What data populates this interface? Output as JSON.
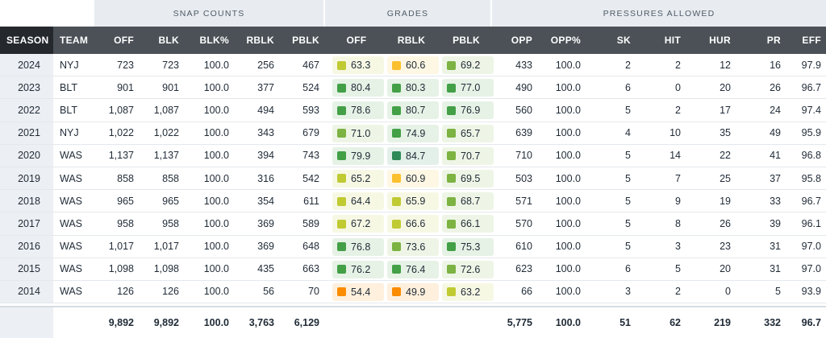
{
  "groups": {
    "snap": "SNAP COUNTS",
    "grades": "GRADES",
    "pressures": "PRESSURES ALLOWED"
  },
  "columns": {
    "season": "SEASON",
    "team": "TEAM",
    "off": "OFF",
    "blk": "BLK",
    "blkpct": "BLK%",
    "rblk": "RBLK",
    "pblk": "PBLK",
    "g_off": "OFF",
    "g_rblk": "RBLK",
    "g_pblk": "PBLK",
    "opp": "OPP",
    "opppct": "OPP%",
    "sk": "SK",
    "hit": "HIT",
    "hur": "HUR",
    "pr": "PR",
    "eff": "EFF"
  },
  "grade_colors": {
    "high": "#2e8b57",
    "good": "#43a047",
    "above": "#7cb342",
    "avg": "#c0ca33",
    "below": "#fbc02d",
    "low": "#fb8c00"
  },
  "rows": [
    {
      "season": "2024",
      "team": "NYJ",
      "off": "723",
      "blk": "723",
      "blkpct": "100.0",
      "rblk": "256",
      "pblk": "467",
      "g_off": "63.3",
      "g_off_c": "avg",
      "g_rblk": "60.6",
      "g_rblk_c": "below",
      "g_pblk": "69.2",
      "g_pblk_c": "above",
      "opp": "433",
      "opppct": "100.0",
      "sk": "2",
      "hit": "2",
      "hur": "12",
      "pr": "16",
      "eff": "97.9"
    },
    {
      "season": "2023",
      "team": "BLT",
      "off": "901",
      "blk": "901",
      "blkpct": "100.0",
      "rblk": "377",
      "pblk": "524",
      "g_off": "80.4",
      "g_off_c": "good",
      "g_rblk": "80.3",
      "g_rblk_c": "good",
      "g_pblk": "77.0",
      "g_pblk_c": "good",
      "opp": "490",
      "opppct": "100.0",
      "sk": "6",
      "hit": "0",
      "hur": "20",
      "pr": "26",
      "eff": "96.7"
    },
    {
      "season": "2022",
      "team": "BLT",
      "off": "1,087",
      "blk": "1,087",
      "blkpct": "100.0",
      "rblk": "494",
      "pblk": "593",
      "g_off": "78.6",
      "g_off_c": "good",
      "g_rblk": "80.7",
      "g_rblk_c": "good",
      "g_pblk": "76.9",
      "g_pblk_c": "good",
      "opp": "560",
      "opppct": "100.0",
      "sk": "5",
      "hit": "2",
      "hur": "17",
      "pr": "24",
      "eff": "97.4"
    },
    {
      "season": "2021",
      "team": "NYJ",
      "off": "1,022",
      "blk": "1,022",
      "blkpct": "100.0",
      "rblk": "343",
      "pblk": "679",
      "g_off": "71.0",
      "g_off_c": "above",
      "g_rblk": "74.9",
      "g_rblk_c": "good",
      "g_pblk": "65.7",
      "g_pblk_c": "above",
      "opp": "639",
      "opppct": "100.0",
      "sk": "4",
      "hit": "10",
      "hur": "35",
      "pr": "49",
      "eff": "95.9"
    },
    {
      "season": "2020",
      "team": "WAS",
      "off": "1,137",
      "blk": "1,137",
      "blkpct": "100.0",
      "rblk": "394",
      "pblk": "743",
      "g_off": "79.9",
      "g_off_c": "good",
      "g_rblk": "84.7",
      "g_rblk_c": "high",
      "g_pblk": "70.7",
      "g_pblk_c": "above",
      "opp": "710",
      "opppct": "100.0",
      "sk": "5",
      "hit": "14",
      "hur": "22",
      "pr": "41",
      "eff": "96.8"
    },
    {
      "season": "2019",
      "team": "WAS",
      "off": "858",
      "blk": "858",
      "blkpct": "100.0",
      "rblk": "316",
      "pblk": "542",
      "g_off": "65.2",
      "g_off_c": "avg",
      "g_rblk": "60.9",
      "g_rblk_c": "below",
      "g_pblk": "69.5",
      "g_pblk_c": "above",
      "opp": "503",
      "opppct": "100.0",
      "sk": "5",
      "hit": "7",
      "hur": "25",
      "pr": "37",
      "eff": "95.8"
    },
    {
      "season": "2018",
      "team": "WAS",
      "off": "965",
      "blk": "965",
      "blkpct": "100.0",
      "rblk": "354",
      "pblk": "611",
      "g_off": "64.4",
      "g_off_c": "avg",
      "g_rblk": "65.9",
      "g_rblk_c": "avg",
      "g_pblk": "68.7",
      "g_pblk_c": "above",
      "opp": "571",
      "opppct": "100.0",
      "sk": "5",
      "hit": "9",
      "hur": "19",
      "pr": "33",
      "eff": "96.7"
    },
    {
      "season": "2017",
      "team": "WAS",
      "off": "958",
      "blk": "958",
      "blkpct": "100.0",
      "rblk": "369",
      "pblk": "589",
      "g_off": "67.2",
      "g_off_c": "avg",
      "g_rblk": "66.6",
      "g_rblk_c": "avg",
      "g_pblk": "66.1",
      "g_pblk_c": "above",
      "opp": "570",
      "opppct": "100.0",
      "sk": "5",
      "hit": "8",
      "hur": "26",
      "pr": "39",
      "eff": "96.1"
    },
    {
      "season": "2016",
      "team": "WAS",
      "off": "1,017",
      "blk": "1,017",
      "blkpct": "100.0",
      "rblk": "369",
      "pblk": "648",
      "g_off": "76.8",
      "g_off_c": "good",
      "g_rblk": "73.6",
      "g_rblk_c": "above",
      "g_pblk": "75.3",
      "g_pblk_c": "good",
      "opp": "610",
      "opppct": "100.0",
      "sk": "5",
      "hit": "3",
      "hur": "23",
      "pr": "31",
      "eff": "97.0"
    },
    {
      "season": "2015",
      "team": "WAS",
      "off": "1,098",
      "blk": "1,098",
      "blkpct": "100.0",
      "rblk": "435",
      "pblk": "663",
      "g_off": "76.2",
      "g_off_c": "good",
      "g_rblk": "76.4",
      "g_rblk_c": "good",
      "g_pblk": "72.6",
      "g_pblk_c": "above",
      "opp": "623",
      "opppct": "100.0",
      "sk": "6",
      "hit": "5",
      "hur": "20",
      "pr": "31",
      "eff": "97.0"
    },
    {
      "season": "2014",
      "team": "WAS",
      "off": "126",
      "blk": "126",
      "blkpct": "100.0",
      "rblk": "56",
      "pblk": "70",
      "g_off": "54.4",
      "g_off_c": "low",
      "g_rblk": "49.9",
      "g_rblk_c": "low",
      "g_pblk": "63.2",
      "g_pblk_c": "avg",
      "opp": "66",
      "opppct": "100.0",
      "sk": "3",
      "hit": "2",
      "hur": "0",
      "pr": "5",
      "eff": "93.9"
    }
  ],
  "totals": {
    "off": "9,892",
    "blk": "9,892",
    "blkpct": "100.0",
    "rblk": "3,763",
    "pblk": "6,129",
    "opp": "5,775",
    "opppct": "100.0",
    "sk": "51",
    "hit": "62",
    "hur": "219",
    "pr": "332",
    "eff": "96.7"
  }
}
